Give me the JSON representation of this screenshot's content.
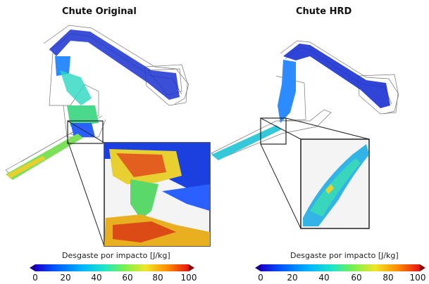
{
  "panels": [
    {
      "title": "Chute Original"
    },
    {
      "title": "Chute HRD"
    }
  ],
  "colorbars": [
    {
      "label": "Desgaste por impacto [J/kg]",
      "ticks": [
        "0",
        "20",
        "40",
        "60",
        "80",
        "100"
      ]
    },
    {
      "label": "Desgaste por impacto [J/kg]",
      "ticks": [
        "0",
        "20",
        "40",
        "60",
        "80",
        "100"
      ]
    }
  ],
  "colors": {
    "scale": [
      "#1a00c8",
      "#0052ff",
      "#00b4ff",
      "#1ee6c8",
      "#78f050",
      "#f0e628",
      "#ff8c00",
      "#e61414",
      "#8c0000"
    ],
    "arrow_min": "#1a0090",
    "arrow_max": "#8c0000",
    "wireframe": "#777777"
  }
}
